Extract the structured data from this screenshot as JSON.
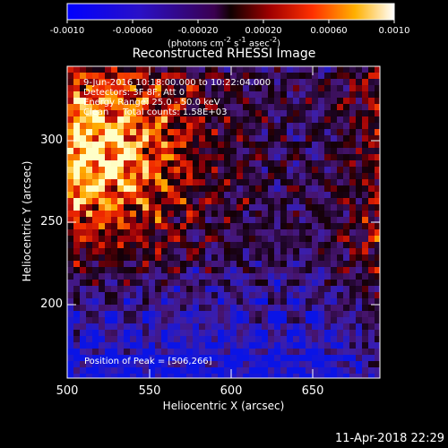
{
  "colorbar": {
    "ticks": [
      "-0.0010",
      "-0.00060",
      "-0.00020",
      "0.00020",
      "0.00060",
      "0.0010"
    ],
    "units_html": "(photons cm<sup>-2</sup> s<sup>-1</sup> asec<sup>-2</sup>)"
  },
  "plot": {
    "title": "Reconstructed RHESSI Image",
    "info_lines": [
      "9-Jun-2016 10:18:00.000 to 10:22:04.000",
      "Detectors: 3F 8F, Att 0",
      "Energy Range: 25.0 - 50.0 keV",
      "Clean     Total counts: 1.58E+03"
    ],
    "peak_label": "Position of Peak = [506,266]",
    "xlabel": "Heliocentric X (arcsec)",
    "ylabel": "Heliocentric Y (arcsec)",
    "xticks": [
      "500",
      "550",
      "600",
      "650"
    ],
    "yticks": [
      "300",
      "250",
      "200"
    ]
  },
  "footer": {
    "timestamp": "11-Apr-2018 22:29"
  }
}
